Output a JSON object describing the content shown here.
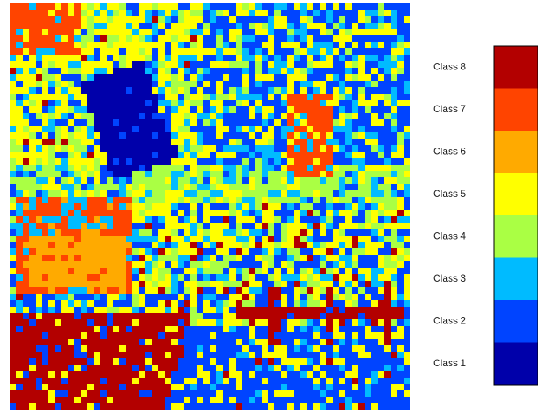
{
  "legend": {
    "items": [
      {
        "label": "Class 8",
        "color": "#b30000"
      },
      {
        "label": "Class 7",
        "color": "#ff4400"
      },
      {
        "label": "Class 6",
        "color": "#ffaa00"
      },
      {
        "label": "Class 5",
        "color": "#ffff00"
      },
      {
        "label": "Class 4",
        "color": "#aaff44"
      },
      {
        "label": "Class 3",
        "color": "#00bbff"
      },
      {
        "label": "Class 2",
        "color": "#0044ff"
      },
      {
        "label": "Class 1",
        "color": "#0000aa"
      }
    ]
  }
}
